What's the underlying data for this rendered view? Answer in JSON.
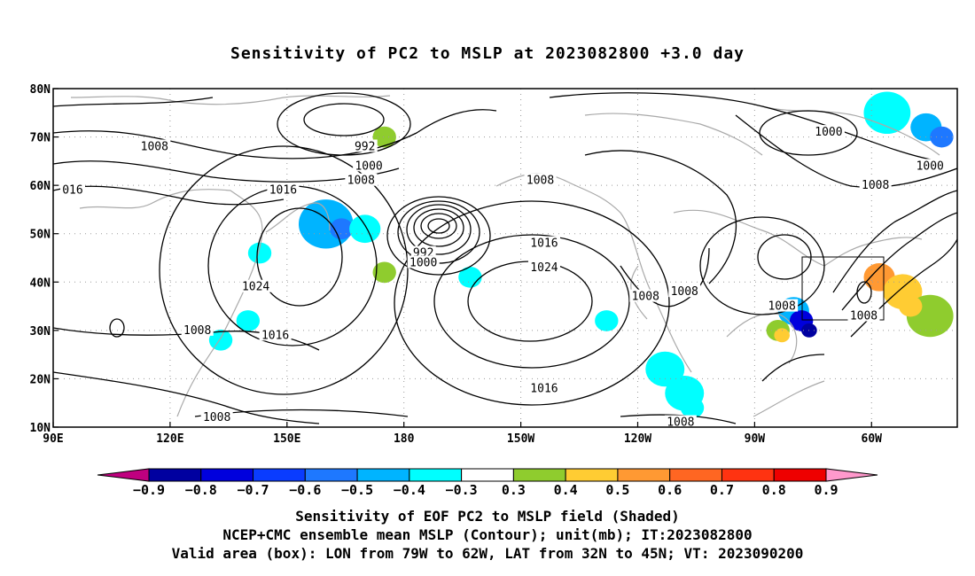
{
  "title": "Sensitivity of PC2 to MSLP at 2023082800 +3.0 day",
  "captions": [
    "Sensitivity of EOF PC2 to MSLP field (Shaded)",
    "NCEP+CMC ensemble mean MSLP (Contour); unit(mb); IT:2023082800",
    "Valid area (box): LON from 79W to 62W, LAT from 32N to 45N; VT: 2023090200"
  ],
  "map": {
    "lat_ticks": [
      "80N",
      "70N",
      "60N",
      "50N",
      "40N",
      "30N",
      "20N",
      "10N"
    ],
    "lon_ticks": [
      "90E",
      "120E",
      "150E",
      "180",
      "150W",
      "120W",
      "90W",
      "60W"
    ],
    "lon_range": [
      90,
      322
    ],
    "lat_range": [
      10,
      80
    ],
    "valid_box": {
      "lon": [
        -79,
        -62
      ],
      "lat": [
        32,
        45
      ]
    },
    "contour_labels": [
      {
        "text": "1008",
        "lon": 116,
        "lat": 68
      },
      {
        "text": "992",
        "lon": 170,
        "lat": 68
      },
      {
        "text": "1000",
        "lon": 171,
        "lat": 64
      },
      {
        "text": "1008",
        "lon": 169,
        "lat": 61
      },
      {
        "text": "016",
        "lon": 95,
        "lat": 59
      },
      {
        "text": "1016",
        "lon": 149,
        "lat": 59
      },
      {
        "text": "1008",
        "lon": 215,
        "lat": 61
      },
      {
        "text": "1000",
        "lon": 289,
        "lat": 71
      },
      {
        "text": "1000",
        "lon": 315,
        "lat": 64
      },
      {
        "text": "1008",
        "lon": 301,
        "lat": 60
      },
      {
        "text": "1016",
        "lon": 216,
        "lat": 48
      },
      {
        "text": "992",
        "lon": 185,
        "lat": 46
      },
      {
        "text": "1000",
        "lon": 185,
        "lat": 44
      },
      {
        "text": "1024",
        "lon": 216,
        "lat": 43
      },
      {
        "text": "1024",
        "lon": 142,
        "lat": 39
      },
      {
        "text": "1008",
        "lon": 242,
        "lat": 37
      },
      {
        "text": "1008",
        "lon": 252,
        "lat": 38
      },
      {
        "text": "1008",
        "lon": 277,
        "lat": 35
      },
      {
        "text": "1008",
        "lon": 298,
        "lat": 33
      },
      {
        "text": "1008",
        "lon": 127,
        "lat": 30
      },
      {
        "text": "1016",
        "lon": 147,
        "lat": 29
      },
      {
        "text": "1016",
        "lon": 216,
        "lat": 18
      },
      {
        "text": "1008",
        "lon": 132,
        "lat": 12
      },
      {
        "text": "1008",
        "lon": 251,
        "lat": 11
      }
    ]
  },
  "colorbar": {
    "labels": [
      "−0.9",
      "−0.8",
      "−0.7",
      "−0.6",
      "−0.5",
      "−0.4",
      "−0.3",
      "0.3",
      "0.4",
      "0.5",
      "0.6",
      "0.7",
      "0.8",
      "0.9"
    ],
    "colors": [
      "#c0007f",
      "#0000a0",
      "#0000dd",
      "#0a3cff",
      "#1e78ff",
      "#00b4ff",
      "#00ffff",
      "#ffffff",
      "#8fcc2e",
      "#ffcc33",
      "#ff9933",
      "#ff6622",
      "#ff3311",
      "#ee0000",
      "#ff99cc"
    ]
  },
  "shading": [
    {
      "lon": 160,
      "lat": 52,
      "r": 7,
      "color": "#00b4ff"
    },
    {
      "lon": 164,
      "lat": 51,
      "r": 3,
      "color": "#1e78ff"
    },
    {
      "lon": 170,
      "lat": 51,
      "r": 4,
      "color": "#00ffff"
    },
    {
      "lon": 143,
      "lat": 46,
      "r": 3,
      "color": "#00ffff"
    },
    {
      "lon": 140,
      "lat": 32,
      "r": 3,
      "color": "#00ffff"
    },
    {
      "lon": 133,
      "lat": 28,
      "r": 3,
      "color": "#00ffff"
    },
    {
      "lon": 197,
      "lat": 41,
      "r": 3,
      "color": "#00ffff"
    },
    {
      "lon": 175,
      "lat": 42,
      "r": 3,
      "color": "#8fcc2e"
    },
    {
      "lon": 232,
      "lat": 32,
      "r": 3,
      "color": "#00ffff"
    },
    {
      "lon": 247,
      "lat": 22,
      "r": 5,
      "color": "#00ffff"
    },
    {
      "lon": 252,
      "lat": 17,
      "r": 5,
      "color": "#00ffff"
    },
    {
      "lon": 254,
      "lat": 14,
      "r": 3,
      "color": "#00ffff"
    },
    {
      "lon": 280,
      "lat": 34,
      "r": 4,
      "color": "#00b4ff"
    },
    {
      "lon": 282,
      "lat": 32,
      "r": 3,
      "color": "#0000dd"
    },
    {
      "lon": 284,
      "lat": 30,
      "r": 2,
      "color": "#0000a0"
    },
    {
      "lon": 276,
      "lat": 30,
      "r": 3,
      "color": "#8fcc2e"
    },
    {
      "lon": 277,
      "lat": 29,
      "r": 2,
      "color": "#ffcc33"
    },
    {
      "lon": 302,
      "lat": 41,
      "r": 4,
      "color": "#ff9933"
    },
    {
      "lon": 308,
      "lat": 38,
      "r": 5,
      "color": "#ffcc33"
    },
    {
      "lon": 315,
      "lat": 33,
      "r": 6,
      "color": "#8fcc2e"
    },
    {
      "lon": 310,
      "lat": 35,
      "r": 3,
      "color": "#ffcc33"
    },
    {
      "lon": 304,
      "lat": 75,
      "r": 6,
      "color": "#00ffff"
    },
    {
      "lon": 314,
      "lat": 72,
      "r": 4,
      "color": "#00b4ff"
    },
    {
      "lon": 318,
      "lat": 70,
      "r": 3,
      "color": "#1e78ff"
    },
    {
      "lon": 175,
      "lat": 70,
      "r": 3,
      "color": "#8fcc2e"
    }
  ]
}
